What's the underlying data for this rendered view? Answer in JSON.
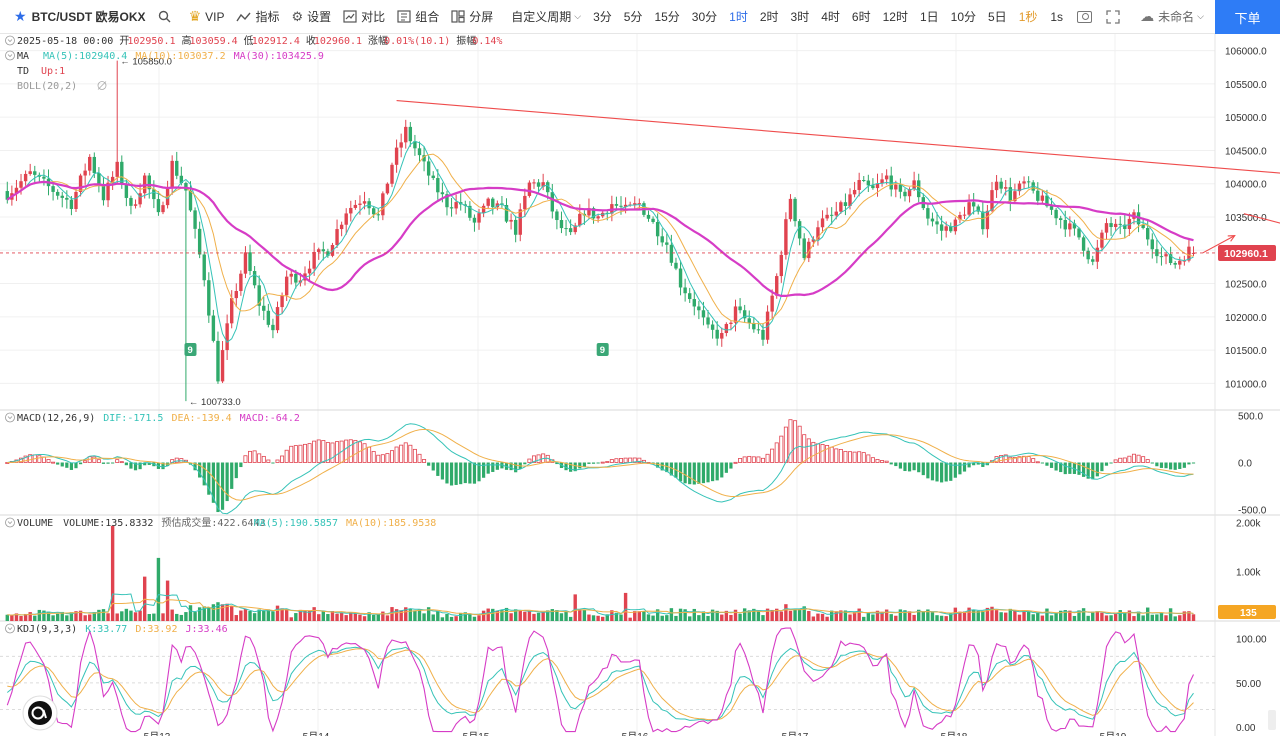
{
  "toolbar": {
    "symbol": "BTC/USDT 欧易OKX",
    "search_icon": "search-icon",
    "vip": "VIP",
    "indicators": "指标",
    "settings": "设置",
    "compare": "对比",
    "combo": "组合",
    "split": "分屏",
    "custom_period": "自定义周期",
    "intervals": [
      "3分",
      "5分",
      "15分",
      "30分",
      "1时",
      "2时",
      "3时",
      "4时",
      "6时",
      "12时",
      "1日",
      "10分",
      "5日",
      "1秒"
    ],
    "active_interval": "1时",
    "right_interval": "1s",
    "unsaved": "未命名",
    "order": "下单"
  },
  "info": {
    "date": "2025-05-18 00:00",
    "open_label": "开",
    "open": "102950.1",
    "high_label": "高",
    "high": "103059.4",
    "low_label": "低",
    "low": "102912.4",
    "close_label": "收",
    "close": "102960.1",
    "change_label": "涨幅",
    "change": "0.01%(10.1)",
    "amp_label": "振幅",
    "amp": "0.14%"
  },
  "legends": {
    "ma_name": "MA",
    "ma5": "MA(5):102940.4",
    "ma10": "MA(10):103037.2",
    "ma30": "MA(30):103425.9",
    "td_name": "TD",
    "td_val": "Up:1",
    "boll_name": "BOLL(20,2)",
    "macd_name": "MACD(12,26,9)",
    "dif": "DIF:-171.5",
    "dea": "DEA:-139.4",
    "macd": "MACD:-64.2",
    "volume_name": "VOLUME",
    "volume_val": "VOLUME:135.8332",
    "vol_est": "预估成交量:422.6443",
    "vol_ma5": "MA(5):190.5857",
    "vol_ma10": "MA(10):185.9538",
    "kdj_name": "KDJ(9,3,3)",
    "kdj_k": "K:33.77",
    "kdj_d": "D:33.92",
    "kdj_j": "J:33.46"
  },
  "annotations": {
    "high_marker": "105850.0",
    "low_marker": "100733.0",
    "td_nine": "9"
  },
  "colors": {
    "up": "#e0434f",
    "down": "#2faa6a",
    "ma5": "#36c3b8",
    "ma10": "#f0b04a",
    "ma30": "#d63cc6",
    "trendline": "#ef4c4c",
    "price_tag": "#e0434f",
    "vol_tag": "#f5a623",
    "accent": "#2e7cf6"
  },
  "chart_data": [
    {
      "type": "candlestick",
      "panel": "price",
      "y_ticks": [
        "106000.0",
        "105500.0",
        "105000.0",
        "104500.0",
        "104000.0",
        "103500.0",
        "103000.0",
        "102500.0",
        "102000.0",
        "101500.0",
        "101000.0"
      ],
      "ylim": [
        100600,
        106250
      ],
      "last_price": "102960.1",
      "marked_high": 105850.0,
      "marked_low": 100733.0,
      "x_ticks": [
        "5月13",
        "5月14",
        "5月15",
        "5月16",
        "5月17",
        "5月18",
        "5月19"
      ],
      "ohlc_keypoints": [
        {
          "t": 0,
          "p": 103850
        },
        {
          "t": 5,
          "p": 104150
        },
        {
          "t": 10,
          "p": 103900
        },
        {
          "t": 14,
          "p": 103700
        },
        {
          "t": 18,
          "p": 104400
        },
        {
          "t": 21,
          "p": 103800
        },
        {
          "t": 24,
          "p": 104250
        },
        {
          "t": 27,
          "p": 103600
        },
        {
          "t": 30,
          "p": 104100
        },
        {
          "t": 33,
          "p": 103500
        },
        {
          "t": 36,
          "p": 104300
        },
        {
          "t": 39,
          "p": 103900
        },
        {
          "t": 43,
          "p": 102600
        },
        {
          "t": 46,
          "p": 101100
        },
        {
          "t": 49,
          "p": 102200
        },
        {
          "t": 52,
          "p": 102900
        },
        {
          "t": 55,
          "p": 102200
        },
        {
          "t": 58,
          "p": 101800
        },
        {
          "t": 61,
          "p": 102600
        },
        {
          "t": 64,
          "p": 102600
        },
        {
          "t": 67,
          "p": 102900
        },
        {
          "t": 70,
          "p": 103000
        },
        {
          "t": 74,
          "p": 103600
        },
        {
          "t": 78,
          "p": 103800
        },
        {
          "t": 81,
          "p": 103500
        },
        {
          "t": 84,
          "p": 104300
        },
        {
          "t": 87,
          "p": 104800
        },
        {
          "t": 90,
          "p": 104400
        },
        {
          "t": 93,
          "p": 104000
        },
        {
          "t": 96,
          "p": 103700
        },
        {
          "t": 99,
          "p": 103700
        },
        {
          "t": 102,
          "p": 103400
        },
        {
          "t": 105,
          "p": 103700
        },
        {
          "t": 108,
          "p": 103600
        },
        {
          "t": 111,
          "p": 103300
        },
        {
          "t": 114,
          "p": 104000
        },
        {
          "t": 117,
          "p": 104000
        },
        {
          "t": 120,
          "p": 103400
        },
        {
          "t": 123,
          "p": 103200
        },
        {
          "t": 126,
          "p": 103600
        },
        {
          "t": 129,
          "p": 103500
        },
        {
          "t": 132,
          "p": 103700
        },
        {
          "t": 135,
          "p": 103600
        },
        {
          "t": 138,
          "p": 103700
        },
        {
          "t": 141,
          "p": 103400
        },
        {
          "t": 144,
          "p": 103100
        },
        {
          "t": 147,
          "p": 102500
        },
        {
          "t": 150,
          "p": 102200
        },
        {
          "t": 153,
          "p": 101800
        },
        {
          "t": 156,
          "p": 101700
        },
        {
          "t": 159,
          "p": 102100
        },
        {
          "t": 162,
          "p": 101900
        },
        {
          "t": 165,
          "p": 101700
        },
        {
          "t": 168,
          "p": 102600
        },
        {
          "t": 171,
          "p": 103800
        },
        {
          "t": 174,
          "p": 102900
        },
        {
          "t": 177,
          "p": 103400
        },
        {
          "t": 180,
          "p": 103500
        },
        {
          "t": 183,
          "p": 103700
        },
        {
          "t": 186,
          "p": 104000
        },
        {
          "t": 189,
          "p": 103900
        },
        {
          "t": 192,
          "p": 104100
        },
        {
          "t": 195,
          "p": 103800
        },
        {
          "t": 198,
          "p": 104000
        },
        {
          "t": 201,
          "p": 103500
        },
        {
          "t": 204,
          "p": 103300
        },
        {
          "t": 207,
          "p": 103400
        },
        {
          "t": 210,
          "p": 103700
        },
        {
          "t": 213,
          "p": 103400
        },
        {
          "t": 216,
          "p": 104100
        },
        {
          "t": 219,
          "p": 103800
        },
        {
          "t": 222,
          "p": 104000
        },
        {
          "t": 225,
          "p": 103800
        },
        {
          "t": 228,
          "p": 103600
        },
        {
          "t": 231,
          "p": 103400
        },
        {
          "t": 234,
          "p": 103200
        },
        {
          "t": 237,
          "p": 102800
        },
        {
          "t": 240,
          "p": 103400
        },
        {
          "t": 243,
          "p": 103300
        },
        {
          "t": 246,
          "p": 103500
        },
        {
          "t": 249,
          "p": 103200
        },
        {
          "t": 252,
          "p": 102900
        },
        {
          "t": 255,
          "p": 102800
        },
        {
          "t": 258,
          "p": 103000
        },
        {
          "t": 259,
          "p": 102960
        }
      ],
      "trendlines": [
        {
          "from": {
            "t": 85,
            "p": 105250
          },
          "to": {
            "t": 333,
            "p": 103850
          }
        },
        {
          "from": {
            "t": 270,
            "p": 103550
          },
          "to": {
            "t": 313,
            "p": 102780
          }
        },
        {
          "from": {
            "t": 261,
            "p": 102960
          },
          "to": {
            "t": 268,
            "p": 103220
          }
        }
      ]
    },
    {
      "type": "bar",
      "panel": "macd",
      "y_ticks": [
        "500.0",
        "0.0",
        "-500.0"
      ],
      "ylim": [
        -560,
        560
      ]
    },
    {
      "type": "bar",
      "panel": "volume",
      "y_ticks": [
        "2.00k",
        "1.00k"
      ],
      "ylim": [
        0,
        2150
      ],
      "last_value": "135"
    },
    {
      "type": "line",
      "panel": "kdj",
      "y_ticks": [
        "100.00",
        "50.00",
        "0.00"
      ],
      "ylim": [
        -10,
        120
      ]
    }
  ]
}
